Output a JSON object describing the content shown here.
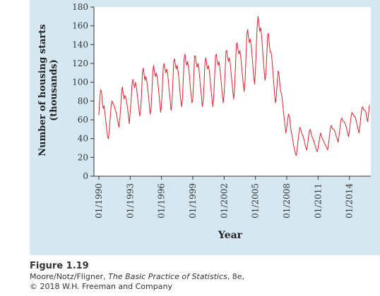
{
  "figure": {
    "caption_title": "Figure 1.19",
    "caption_authors": "Moore/Notz/Fligner, ",
    "caption_book": "The Basic Practice of Statistics",
    "caption_edition": ", 8e,",
    "caption_copyright": "© 2018 W.H. Freeman and Company"
  },
  "colors": {
    "panel_background": "#d5e8f1",
    "plot_background": "#ffffff",
    "series_line": "#d9232e",
    "axis": "#333333"
  },
  "chart_data": {
    "type": "line",
    "title": "",
    "xlabel": "Year",
    "ylabel": "Number of housing starts (thousands)",
    "ylabel_lines": [
      "Number of housing starts",
      "(thousands)"
    ],
    "ylim": [
      0,
      180
    ],
    "yticks": [
      0,
      20,
      40,
      60,
      80,
      100,
      120,
      140,
      160,
      180
    ],
    "xlim": [
      "1990-01",
      "2015-12"
    ],
    "xticks": [
      "01/1990",
      "01/1993",
      "01/1996",
      "01/1999",
      "01/2002",
      "01/2005",
      "01/2008",
      "01/2011",
      "01/2014"
    ],
    "grid": false,
    "legend": "none",
    "frequency": "monthly",
    "x_start": "1990-01",
    "series": [
      {
        "values": [
          65,
          82,
          92,
          90,
          78,
          72,
          75,
          67,
          58,
          50,
          42,
          40,
          50,
          62,
          74,
          80,
          78,
          76,
          74,
          70,
          68,
          62,
          58,
          52,
          60,
          72,
          88,
          95,
          88,
          82,
          86,
          84,
          78,
          72,
          64,
          56,
          68,
          80,
          96,
          103,
          98,
          94,
          100,
          96,
          88,
          80,
          72,
          64,
          70,
          86,
          110,
          115,
          108,
          102,
          106,
          102,
          94,
          86,
          76,
          66,
          72,
          90,
          112,
          118,
          110,
          106,
          110,
          106,
          98,
          88,
          78,
          68,
          76,
          94,
          116,
          120,
          114,
          110,
          114,
          110,
          100,
          90,
          80,
          70,
          78,
          98,
          122,
          125,
          118,
          114,
          118,
          112,
          104,
          92,
          82,
          74,
          82,
          102,
          126,
          130,
          122,
          118,
          122,
          116,
          108,
          96,
          86,
          78,
          82,
          104,
          128,
          128,
          120,
          116,
          120,
          114,
          104,
          94,
          84,
          74,
          80,
          100,
          122,
          126,
          118,
          114,
          118,
          112,
          102,
          92,
          82,
          74,
          84,
          104,
          128,
          130,
          122,
          118,
          122,
          116,
          106,
          96,
          86,
          78,
          88,
          108,
          132,
          134,
          126,
          122,
          126,
          120,
          110,
          100,
          90,
          82,
          94,
          116,
          140,
          142,
          134,
          130,
          134,
          128,
          118,
          108,
          98,
          90,
          100,
          124,
          150,
          156,
          148,
          142,
          146,
          140,
          130,
          118,
          106,
          98,
          112,
          138,
          160,
          170,
          162,
          154,
          158,
          150,
          138,
          124,
          112,
          102,
          108,
          128,
          150,
          152,
          140,
          132,
          132,
          124,
          112,
          100,
          88,
          78,
          84,
          100,
          112,
          110,
          98,
          90,
          88,
          80,
          70,
          62,
          54,
          46,
          52,
          60,
          66,
          64,
          56,
          48,
          44,
          38,
          32,
          28,
          24,
          22,
          30,
          38,
          46,
          52,
          50,
          46,
          44,
          42,
          38,
          34,
          30,
          28,
          34,
          42,
          48,
          50,
          46,
          42,
          40,
          38,
          34,
          32,
          28,
          26,
          30,
          36,
          42,
          46,
          42,
          40,
          38,
          36,
          34,
          32,
          30,
          28,
          34,
          42,
          50,
          54,
          52,
          50,
          50,
          48,
          46,
          42,
          40,
          36,
          42,
          50,
          58,
          62,
          60,
          58,
          58,
          56,
          54,
          50,
          46,
          42,
          48,
          56,
          64,
          68,
          66,
          64,
          64,
          62,
          58,
          54,
          50,
          46,
          52,
          62,
          70,
          74,
          72,
          70,
          70,
          68,
          62,
          58,
          66,
          76
        ]
      }
    ]
  }
}
